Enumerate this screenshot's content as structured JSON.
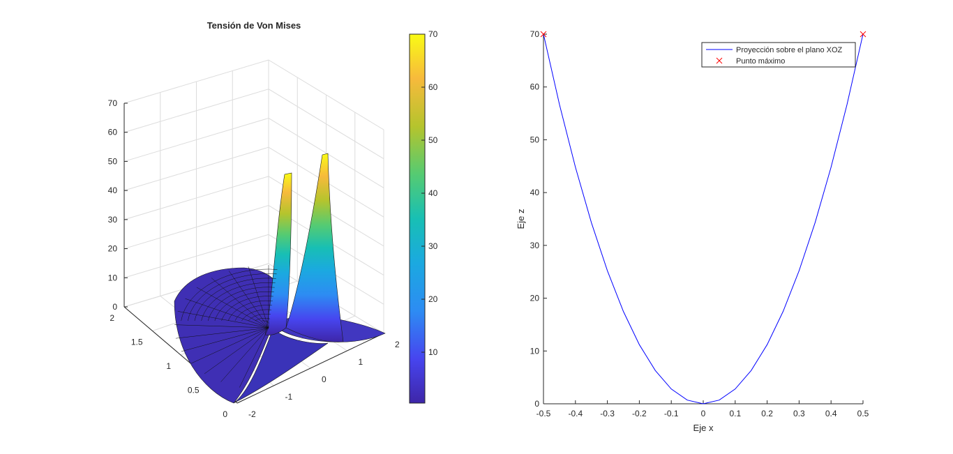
{
  "chart_data": [
    {
      "type": "surface3d",
      "title": "Tensión de Von Mises",
      "xlabel": "",
      "ylabel": "",
      "zlabel": "",
      "x_ticks": [
        "-2",
        "-1",
        "0",
        "1",
        "2"
      ],
      "y_ticks": [
        "0",
        "0.5",
        "1",
        "1.5",
        "2"
      ],
      "z_ticks": [
        "0",
        "10",
        "20",
        "30",
        "40",
        "50",
        "60",
        "70"
      ],
      "xlim": [
        -2,
        2
      ],
      "ylim": [
        0,
        2
      ],
      "zlim": [
        0,
        70
      ],
      "colormap": "parula",
      "colorbar_ticks": [
        "10",
        "20",
        "30",
        "40",
        "50",
        "60",
        "70"
      ],
      "colorbar_range": [
        0.4,
        70
      ],
      "grid": true,
      "peak_value": 70
    },
    {
      "type": "line",
      "title": "",
      "xlabel": "Eje x",
      "ylabel": "Eje z",
      "xlim": [
        -0.5,
        0.5
      ],
      "ylim": [
        0,
        70
      ],
      "x_ticks": [
        "-0.5",
        "-0.4",
        "-0.3",
        "-0.2",
        "-0.1",
        "0",
        "0.1",
        "0.2",
        "0.3",
        "0.4",
        "0.5"
      ],
      "y_ticks": [
        "0",
        "10",
        "20",
        "30",
        "40",
        "50",
        "60",
        "70"
      ],
      "series": [
        {
          "name": "Proyección sobre el plano XOZ",
          "color": "#0000ff",
          "x": [
            -0.5,
            -0.45,
            -0.4,
            -0.35,
            -0.3,
            -0.25,
            -0.2,
            -0.15,
            -0.1,
            -0.05,
            0,
            0.05,
            0.1,
            0.15,
            0.2,
            0.25,
            0.3,
            0.35,
            0.4,
            0.45,
            0.5
          ],
          "y": [
            70,
            56.7,
            44.8,
            34.3,
            25.2,
            17.5,
            11.2,
            6.3,
            2.8,
            0.7,
            0,
            0.7,
            2.8,
            6.3,
            11.2,
            17.5,
            25.2,
            34.3,
            44.8,
            56.7,
            70
          ]
        },
        {
          "name": "Punto máximo",
          "color": "#ff0000",
          "marker": "x",
          "x": [
            -0.5,
            0.5
          ],
          "y": [
            70,
            70
          ]
        }
      ],
      "legend_position": "top-right"
    }
  ]
}
